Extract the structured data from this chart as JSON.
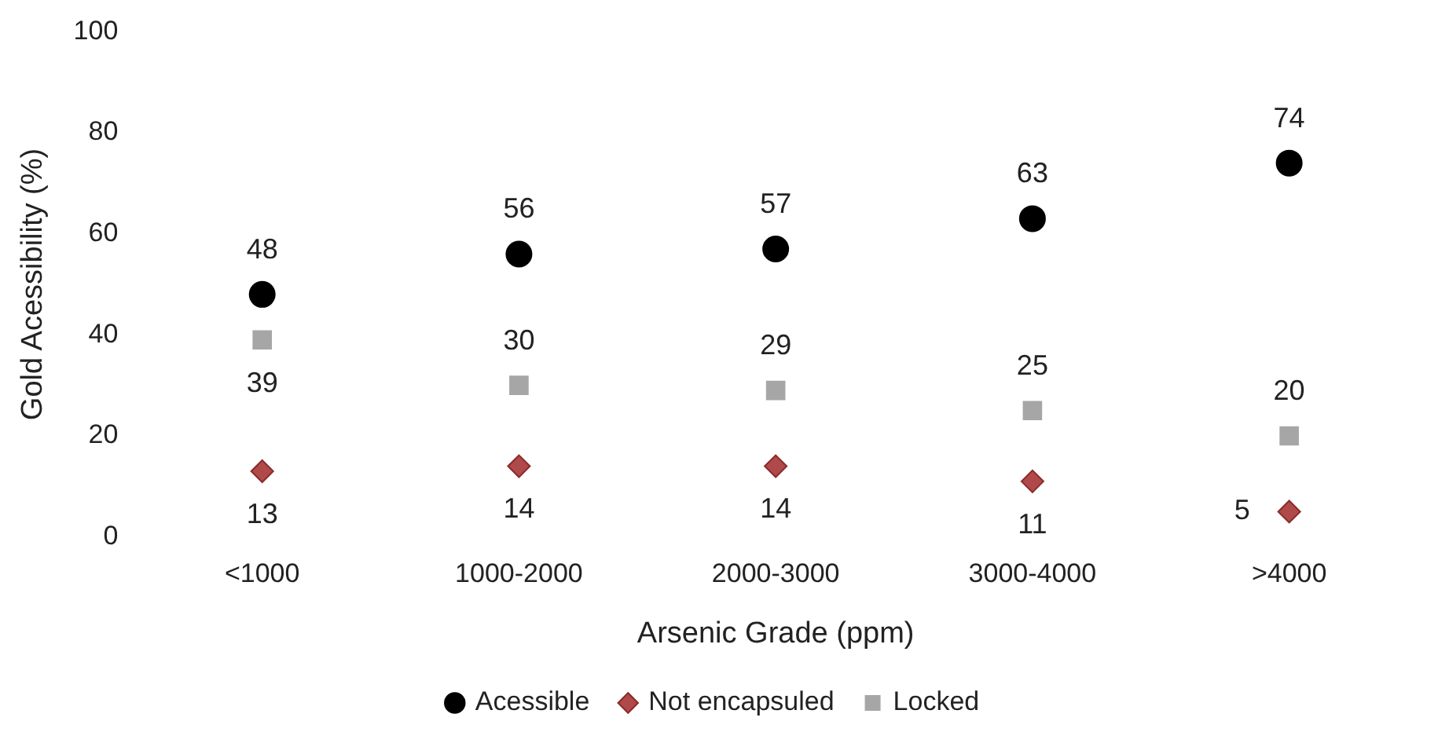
{
  "chart_data": {
    "type": "scatter",
    "xlabel": "Arsenic Grade (ppm)",
    "ylabel": "Gold Acessibility (%)",
    "categories": [
      "<1000",
      "1000-2000",
      "2000-3000",
      "3000-4000",
      ">4000"
    ],
    "ylim": [
      0,
      100
    ],
    "yticks": [
      0,
      20,
      40,
      60,
      80,
      100
    ],
    "grid": false,
    "legend": "bottom",
    "data_labels": true,
    "series": [
      {
        "name": "Acessible",
        "color": "#000000",
        "marker": "circle",
        "values": [
          48,
          56,
          57,
          63,
          74
        ]
      },
      {
        "name": "Not encapsuled",
        "color": "#b04a4a",
        "marker": "diamond",
        "values": [
          13,
          14,
          14,
          11,
          5
        ]
      },
      {
        "name": "Locked",
        "color": "#a6a6a6",
        "marker": "square",
        "values": [
          39,
          30,
          29,
          25,
          20
        ]
      }
    ]
  }
}
